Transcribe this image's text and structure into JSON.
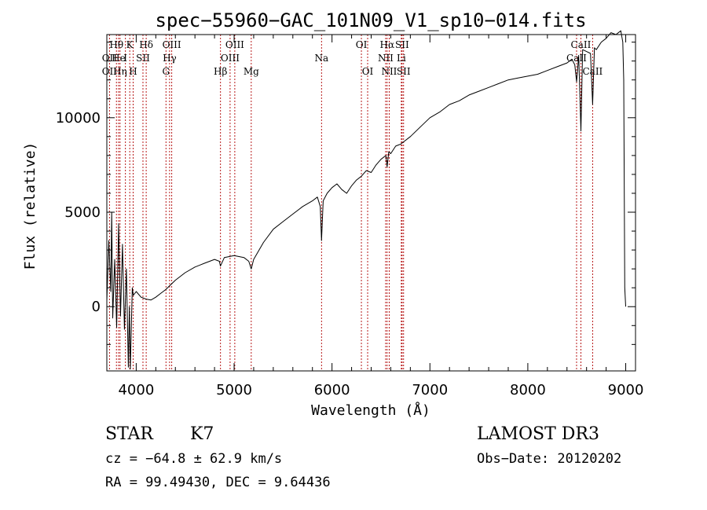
{
  "chart_data": {
    "type": "line",
    "title": "spec−55960−GAC_101N09_V1_sp10−014.fits",
    "xlabel": "Wavelength (Å)",
    "ylabel": "Flux (relative)",
    "xlim": [
      3700,
      9100
    ],
    "ylim": [
      -3400,
      14400
    ],
    "xticks": [
      4000,
      5000,
      6000,
      7000,
      8000,
      9000
    ],
    "yticks": [
      0,
      5000,
      10000
    ],
    "spectrum": {
      "x": [
        3700,
        3720,
        3740,
        3750,
        3760,
        3780,
        3800,
        3820,
        3840,
        3860,
        3880,
        3900,
        3920,
        3930,
        3940,
        3960,
        3970,
        4000,
        4050,
        4100,
        4150,
        4200,
        4250,
        4300,
        4400,
        4500,
        4600,
        4700,
        4800,
        4850,
        4860,
        4900,
        5000,
        5100,
        5150,
        5175,
        5200,
        5300,
        5400,
        5500,
        5600,
        5700,
        5800,
        5850,
        5880,
        5893,
        5910,
        5950,
        6000,
        6050,
        6100,
        6150,
        6200,
        6250,
        6300,
        6350,
        6400,
        6450,
        6500,
        6550,
        6563,
        6580,
        6600,
        6650,
        6700,
        6800,
        6900,
        7000,
        7100,
        7200,
        7300,
        7400,
        7500,
        7600,
        7700,
        7800,
        7900,
        8000,
        8100,
        8200,
        8300,
        8400,
        8450,
        8480,
        8498,
        8520,
        8542,
        8560,
        8600,
        8640,
        8662,
        8680,
        8700,
        8750,
        8800,
        8850,
        8900,
        8950,
        8970,
        8980,
        8990,
        9000
      ],
      "y": [
        300,
        3500,
        800,
        5000,
        -600,
        2500,
        -1100,
        4400,
        -500,
        3300,
        -1200,
        2000,
        -3200,
        0,
        -3300,
        1000,
        600,
        800,
        500,
        400,
        350,
        500,
        700,
        900,
        1400,
        1800,
        2100,
        2300,
        2500,
        2400,
        2150,
        2600,
        2700,
        2600,
        2400,
        2000,
        2500,
        3400,
        4100,
        4500,
        4900,
        5300,
        5600,
        5800,
        5300,
        3500,
        5600,
        6000,
        6300,
        6500,
        6200,
        6000,
        6400,
        6700,
        6900,
        7200,
        7100,
        7500,
        7800,
        8000,
        7400,
        8200,
        8100,
        8500,
        8600,
        9000,
        9500,
        10000,
        10300,
        10700,
        10900,
        11200,
        11400,
        11600,
        11800,
        12000,
        12100,
        12200,
        12300,
        12500,
        12700,
        12900,
        13100,
        12800,
        11900,
        13300,
        9300,
        13600,
        13500,
        13400,
        10700,
        13700,
        13600,
        14000,
        14200,
        14500,
        14400,
        14600,
        14000,
        12000,
        1000,
        0
      ]
    },
    "spectral_lines": [
      {
        "name": "Hθ",
        "x": 3798,
        "row": 1
      },
      {
        "name": "OII",
        "x": 3727,
        "row": 2
      },
      {
        "name": "OII",
        "x": 3727,
        "row": 3
      },
      {
        "name": "He",
        "x": 3820,
        "row": 2
      },
      {
        "name": "Hη",
        "x": 3835,
        "row": 3
      },
      {
        "name": "K",
        "x": 3934,
        "row": 1
      },
      {
        "name": "I",
        "x": 3890,
        "row": 2
      },
      {
        "name": "SII",
        "x": 4069,
        "row": 2
      },
      {
        "name": "H",
        "x": 3969,
        "row": 3
      },
      {
        "name": "Hδ",
        "x": 4102,
        "row": 1
      },
      {
        "name": "OIII",
        "x": 4363,
        "row": 1
      },
      {
        "name": "Hγ",
        "x": 4341,
        "row": 2
      },
      {
        "name": "G",
        "x": 4304,
        "row": 3
      },
      {
        "name": "OIII",
        "x": 5007,
        "row": 1
      },
      {
        "name": "OIII",
        "x": 4959,
        "row": 2
      },
      {
        "name": "Hβ",
        "x": 4861,
        "row": 3
      },
      {
        "name": "Mg",
        "x": 5175,
        "row": 3
      },
      {
        "name": "Na",
        "x": 5893,
        "row": 2
      },
      {
        "name": "OI",
        "x": 6300,
        "row": 1
      },
      {
        "name": "OI",
        "x": 6364,
        "row": 3
      },
      {
        "name": "Hα",
        "x": 6563,
        "row": 1
      },
      {
        "name": "SII",
        "x": 6716,
        "row": 1
      },
      {
        "name": "NII",
        "x": 6548,
        "row": 2
      },
      {
        "name": "Li",
        "x": 6708,
        "row": 2
      },
      {
        "name": "NII",
        "x": 6584,
        "row": 3
      },
      {
        "name": "SII",
        "x": 6731,
        "row": 3
      },
      {
        "name": "CaII",
        "x": 8542,
        "row": 1
      },
      {
        "name": "CaII",
        "x": 8498,
        "row": 2
      },
      {
        "name": "CaII",
        "x": 8662,
        "row": 3
      }
    ]
  },
  "info": {
    "class_label": "STAR",
    "subclass": "K7",
    "survey": "LAMOST DR3",
    "cz": "cz = −64.8 ± 62.9 km/s",
    "obs_date": "Obs−Date: 20120202",
    "coords": "RA =  99.49430, DEC =   9.64436"
  }
}
